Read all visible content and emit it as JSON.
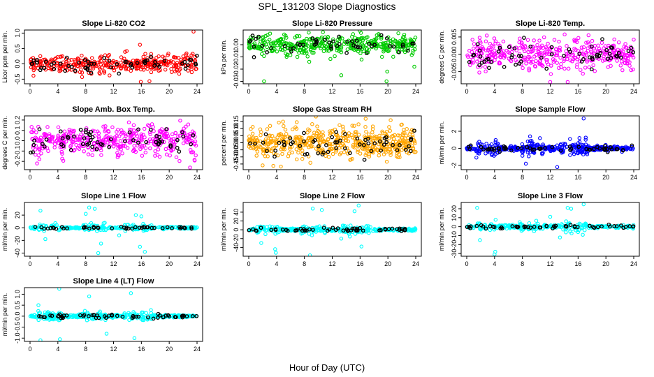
{
  "page_title": "SPL_131203  Slope Diagnostics",
  "x_axis_label": "Hour of Day (UTC)",
  "chart_data": [
    {
      "type": "scatter",
      "title": "Slope Li-820 CO2",
      "ylabel": "Licor ppm per min.",
      "color": "#ff0000",
      "xlim": [
        0,
        24
      ],
      "xticks": [
        0,
        4,
        8,
        12,
        16,
        20,
        24
      ],
      "ylim": [
        -0.65,
        1.1
      ],
      "yticks": [
        -0.5,
        0.0,
        0.5,
        1.0
      ],
      "ytick_labels": [
        "-0.5",
        "0.0",
        "0.5",
        "1.0"
      ],
      "spread": 0.14,
      "n_color": 360,
      "n_black": 60,
      "outliers": [
        [
          23.5,
          1.05
        ],
        [
          15.8,
          0.62
        ],
        [
          19.8,
          0.28
        ],
        [
          22.4,
          0.3
        ],
        [
          23.2,
          0.28
        ],
        [
          17.4,
          0.32
        ]
      ]
    },
    {
      "type": "scatter",
      "title": "Slope Li-820 Pressure",
      "ylabel": "kPa per min.",
      "color": "#00cc00",
      "xlim": [
        0,
        24
      ],
      "xticks": [
        0,
        4,
        8,
        12,
        16,
        20,
        24
      ],
      "ylim": [
        -0.032,
        0.012
      ],
      "yticks": [
        -0.03,
        -0.02,
        -0.01,
        0.0
      ],
      "ytick_labels": [
        "-0.03",
        "-0.02",
        "-0.01",
        "0.00"
      ],
      "spread": 0.004,
      "n_color": 420,
      "n_black": 55,
      "outliers": [
        [
          2.2,
          -0.03
        ],
        [
          13.3,
          -0.025
        ],
        [
          19.8,
          -0.03
        ],
        [
          23.8,
          -0.018
        ],
        [
          8.7,
          -0.014
        ],
        [
          19.9,
          -0.022
        ]
      ]
    },
    {
      "type": "scatter",
      "title": "Slope Li-820 Temp.",
      "ylabel": "degrees C per min.",
      "color": "#ff00ff",
      "xlim": [
        0,
        24
      ],
      "xticks": [
        0,
        4,
        8,
        12,
        16,
        20,
        24
      ],
      "ylim": [
        -0.0085,
        0.007
      ],
      "yticks": [
        -0.005,
        0.0,
        0.005
      ],
      "ytick_labels": [
        "-0.005",
        "0.000",
        "0.005"
      ],
      "spread": 0.0022,
      "n_color": 380,
      "n_black": 60,
      "outliers": [
        [
          17.5,
          0.0055
        ],
        [
          12.0,
          -0.008
        ],
        [
          14.5,
          -0.008
        ]
      ]
    },
    {
      "type": "scatter",
      "title": "Slope Amb. Box Temp.",
      "ylabel": "degrees C per min.",
      "color": "#ff00ff",
      "xlim": [
        0,
        24
      ],
      "xticks": [
        0,
        4,
        8,
        12,
        16,
        20,
        24
      ],
      "ylim": [
        -0.28,
        0.24
      ],
      "yticks": [
        -0.2,
        -0.1,
        0.0,
        0.1,
        0.2
      ],
      "ytick_labels": [
        "-0.2",
        "-0.1",
        "0.0",
        "0.1",
        "0.2"
      ],
      "spread": 0.07,
      "n_color": 400,
      "n_black": 60,
      "outliers": [
        [
          23.0,
          -0.26
        ],
        [
          1.0,
          -0.22
        ]
      ]
    },
    {
      "type": "scatter",
      "title": "Slope Gas Stream RH",
      "ylabel": "percent per min.",
      "color": "#ffa500",
      "xlim": [
        0,
        24
      ],
      "xticks": [
        0,
        4,
        8,
        12,
        16,
        20,
        24
      ],
      "ylim": [
        -0.19,
        0.19
      ],
      "yticks": [
        -0.15,
        -0.1,
        -0.05,
        0.0,
        0.05,
        0.1,
        0.15
      ],
      "ytick_labels": [
        "-0.15",
        "-0.10",
        "-0.05",
        "0.00",
        "0.05",
        "0.10",
        "0.15"
      ],
      "spread": 0.055,
      "n_color": 520,
      "n_black": 60,
      "outliers": [
        [
          16.8,
          0.17
        ],
        [
          2.0,
          -0.16
        ],
        [
          20.4,
          0.16
        ]
      ]
    },
    {
      "type": "scatter",
      "title": "Slope Sample Flow",
      "ylabel": "ml/min per min.",
      "color": "#0000ff",
      "xlim": [
        0,
        24
      ],
      "xticks": [
        0,
        4,
        8,
        12,
        16,
        20,
        24
      ],
      "ylim": [
        -2.5,
        3.8
      ],
      "yticks": [
        -2,
        0,
        2
      ],
      "ytick_labels": [
        "-2",
        "0",
        "2"
      ],
      "spread": 0.18,
      "n_color": 420,
      "n_black": 55,
      "outliers": [
        [
          16.8,
          3.5
        ],
        [
          13.0,
          -2.2
        ],
        [
          8.5,
          -1.8
        ],
        [
          9.1,
          1.4
        ],
        [
          16.2,
          1.2
        ],
        [
          3.6,
          -0.8
        ]
      ]
    },
    {
      "type": "scatter",
      "title": "Slope Line 1 Flow",
      "ylabel": "ml/min per min.",
      "color": "#00ffff",
      "xlim": [
        0,
        24
      ],
      "xticks": [
        0,
        4,
        8,
        12,
        16,
        20,
        24
      ],
      "ylim": [
        -45,
        40
      ],
      "yticks": [
        -40,
        -20,
        0,
        20
      ],
      "ytick_labels": [
        "-40",
        "-20",
        "0",
        "20"
      ],
      "spread": 1.2,
      "n_color": 260,
      "n_black": 45,
      "outliers": [
        [
          1.5,
          27
        ],
        [
          8.5,
          32
        ],
        [
          9.3,
          30
        ],
        [
          8.0,
          22
        ],
        [
          10.2,
          -25
        ],
        [
          15.8,
          -30
        ],
        [
          15.2,
          20
        ],
        [
          16.0,
          18
        ],
        [
          2.2,
          -18
        ],
        [
          12.8,
          -12
        ],
        [
          9.8,
          -40
        ],
        [
          16.5,
          -38
        ]
      ]
    },
    {
      "type": "scatter",
      "title": "Slope Line 2 Flow",
      "ylabel": "ml/min per min.",
      "color": "#00ffff",
      "xlim": [
        0,
        24
      ],
      "xticks": [
        0,
        4,
        8,
        12,
        16,
        20,
        24
      ],
      "ylim": [
        -60,
        62
      ],
      "yticks": [
        -40,
        -20,
        0,
        20,
        40
      ],
      "ytick_labels": [
        "-40",
        "-20",
        "0",
        "20",
        "40"
      ],
      "spread": 2.2,
      "n_color": 330,
      "n_black": 55,
      "outliers": [
        [
          15.8,
          55
        ],
        [
          3.8,
          -44
        ],
        [
          3.9,
          -52
        ],
        [
          9.2,
          48
        ],
        [
          10.5,
          45
        ],
        [
          15.2,
          42
        ],
        [
          1.8,
          -30
        ],
        [
          16.2,
          -38
        ],
        [
          13.3,
          -20
        ],
        [
          8.8,
          -58
        ]
      ]
    },
    {
      "type": "scatter",
      "title": "Slope Line 3 Flow",
      "ylabel": "ml/min per min.",
      "color": "#00ffff",
      "xlim": [
        0,
        24
      ],
      "xticks": [
        0,
        4,
        8,
        12,
        16,
        20,
        24
      ],
      "ylim": [
        -33,
        27
      ],
      "yticks": [
        -30,
        -20,
        -10,
        0,
        10,
        20
      ],
      "ytick_labels": [
        "-30",
        "-20",
        "-10",
        "0",
        "10",
        "20"
      ],
      "spread": 1.1,
      "n_color": 320,
      "n_black": 55,
      "outliers": [
        [
          16.8,
          25
        ],
        [
          4.0,
          -31
        ],
        [
          4.1,
          -28
        ],
        [
          1.5,
          21
        ],
        [
          14.5,
          21
        ],
        [
          15.0,
          20
        ],
        [
          1.9,
          -15
        ],
        [
          13.4,
          -12
        ],
        [
          12.0,
          11
        ]
      ]
    },
    {
      "type": "scatter",
      "title": "Slope Line 4 (LT) Flow",
      "ylabel": "ml/min per min.",
      "color": "#00ffff",
      "xlim": [
        0,
        24
      ],
      "xticks": [
        0,
        4,
        8,
        12,
        16,
        20,
        24
      ],
      "ylim": [
        -1.15,
        1.3
      ],
      "yticks": [
        -1.0,
        -0.5,
        0.0,
        0.5,
        1.0
      ],
      "ytick_labels": [
        "-1.0",
        "-0.5",
        "0.0",
        "0.5",
        "1.0"
      ],
      "spread": 0.05,
      "n_color": 360,
      "n_black": 55,
      "outliers": [
        [
          4.2,
          1.25
        ],
        [
          4.3,
          -1.05
        ],
        [
          15.0,
          -1.0
        ],
        [
          1.5,
          -1.1
        ],
        [
          14.5,
          1.05
        ],
        [
          8.5,
          0.9
        ],
        [
          11.0,
          -0.8
        ],
        [
          1.2,
          0.5
        ]
      ]
    }
  ]
}
